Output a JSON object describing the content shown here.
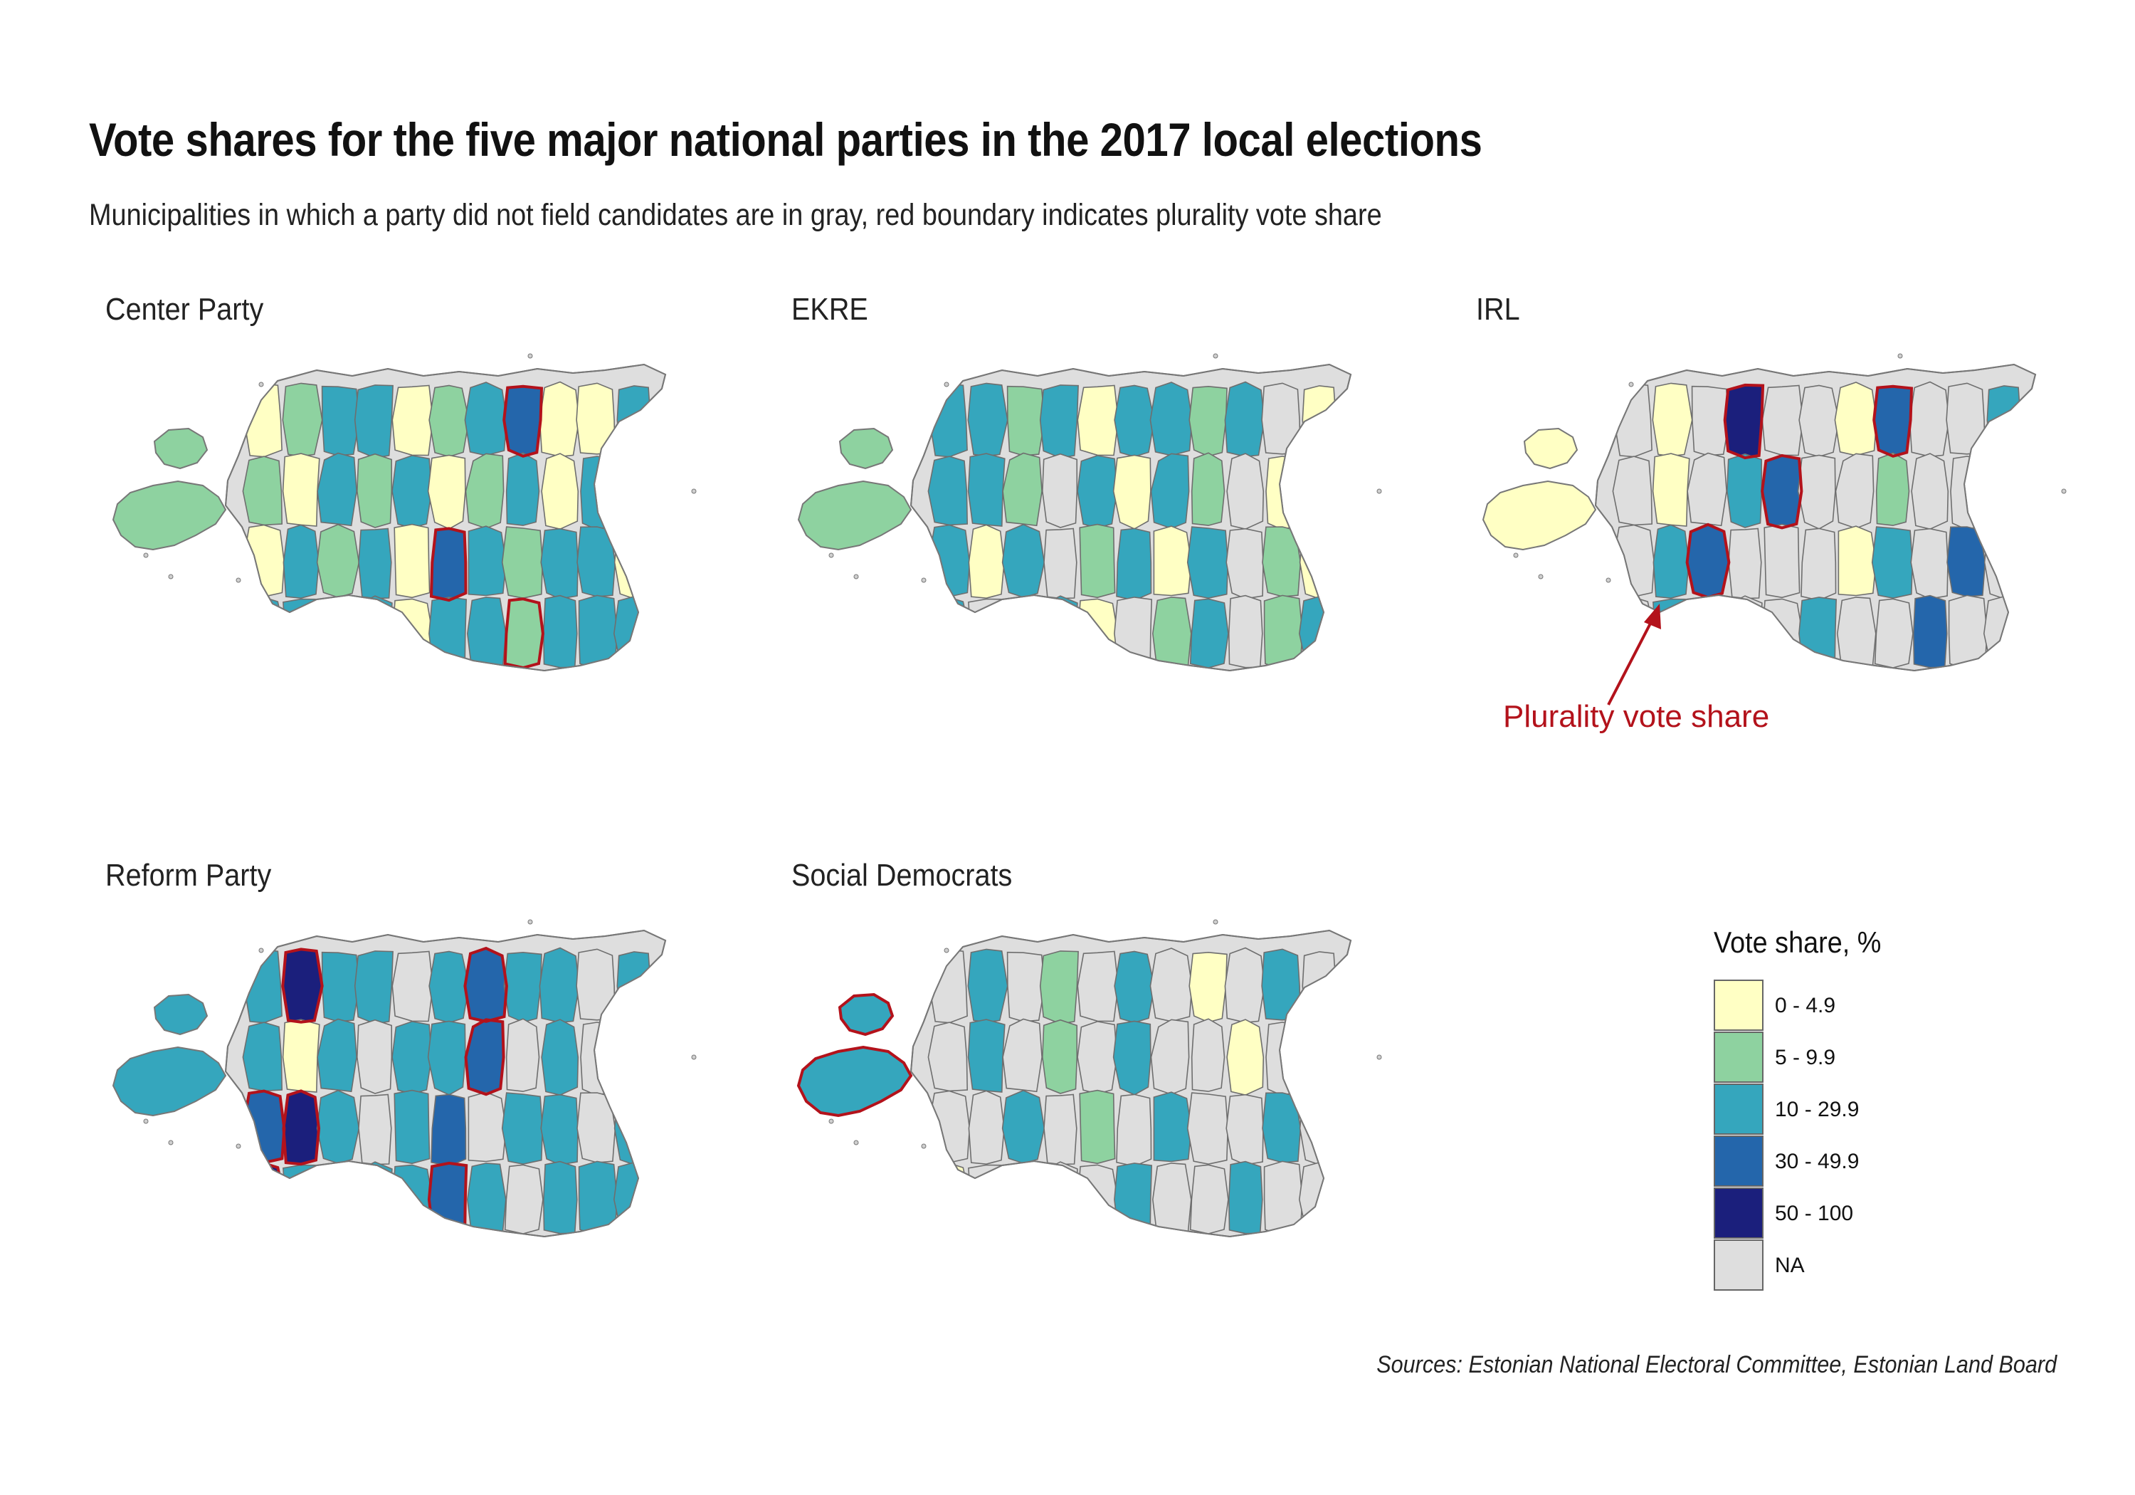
{
  "title": "Vote shares for the five major national parties in the 2017 local elections",
  "subtitle": "Municipalities in which a party did not field candidates are in gray, red boundary indicates plurality vote share",
  "panels": [
    {
      "name": "Center Party",
      "fills": [
        0,
        1,
        2,
        2,
        0,
        1,
        2,
        3,
        0,
        0,
        2,
        1,
        0,
        2,
        1,
        2,
        0,
        1,
        2,
        0,
        2,
        2,
        0,
        2,
        1,
        2,
        0,
        3,
        2,
        1,
        2,
        2,
        0,
        2,
        2,
        1,
        2,
        0,
        2,
        2,
        1,
        2,
        2,
        2
      ],
      "plurality": [
        7,
        27,
        35,
        40
      ],
      "island_big": 1,
      "island_small": 1
    },
    {
      "name": "EKRE",
      "fills": [
        2,
        2,
        1,
        2,
        0,
        2,
        2,
        1,
        2,
        5,
        0,
        2,
        2,
        1,
        5,
        2,
        0,
        2,
        1,
        5,
        0,
        2,
        2,
        0,
        2,
        5,
        1,
        2,
        0,
        2,
        5,
        1,
        0,
        2,
        5,
        1,
        2,
        0,
        5,
        1,
        2,
        5,
        1,
        2
      ],
      "plurality": [],
      "island_big": 1,
      "island_small": 1
    },
    {
      "name": "IRL",
      "fills": [
        5,
        0,
        5,
        4,
        5,
        5,
        0,
        3,
        5,
        5,
        2,
        5,
        0,
        5,
        2,
        3,
        5,
        5,
        1,
        5,
        5,
        0,
        5,
        2,
        3,
        5,
        5,
        5,
        0,
        2,
        5,
        3,
        5,
        5,
        2,
        1,
        5,
        5,
        2,
        5,
        5,
        3,
        5,
        5
      ],
      "plurality": [
        3,
        7,
        15,
        24
      ],
      "island_big": 0,
      "island_small": 0
    },
    {
      "name": "Reform Party",
      "fills": [
        2,
        4,
        2,
        2,
        5,
        2,
        3,
        2,
        2,
        5,
        2,
        2,
        0,
        2,
        5,
        2,
        2,
        3,
        5,
        2,
        5,
        2,
        3,
        4,
        2,
        5,
        2,
        3,
        5,
        2,
        2,
        5,
        2,
        4,
        2,
        5,
        2,
        2,
        3,
        2,
        5,
        2,
        2,
        2
      ],
      "plurality": [
        1,
        6,
        17,
        22,
        23,
        33,
        38
      ],
      "island_big": 2,
      "island_small": 2
    },
    {
      "name": "Social Democrats",
      "fills": [
        5,
        2,
        5,
        1,
        5,
        2,
        5,
        0,
        5,
        2,
        5,
        5,
        2,
        5,
        1,
        5,
        2,
        5,
        5,
        0,
        5,
        2,
        5,
        5,
        2,
        5,
        1,
        5,
        2,
        5,
        5,
        2,
        5,
        0,
        5,
        2,
        5,
        5,
        2,
        5,
        5,
        2,
        5,
        5
      ],
      "plurality": [],
      "island_big": 2,
      "island_small": 2
    }
  ],
  "legend": {
    "title": "Vote share, %",
    "items": [
      {
        "label": "0 - 4.9",
        "color": "#ffffc4"
      },
      {
        "label": "5 - 9.9",
        "color": "#8ed2a0"
      },
      {
        "label": "10 - 29.9",
        "color": "#35a6bd"
      },
      {
        "label": "30 - 49.9",
        "color": "#2466ab"
      },
      {
        "label": "50 - 100",
        "color": "#1b1f7c"
      },
      {
        "label": "NA",
        "color": "#dedede"
      }
    ]
  },
  "annotation": {
    "label": "Plurality vote share",
    "color": "#b3121b"
  },
  "sources": "Sources: Estonian National Electoral Committee, Estonian Land Board"
}
